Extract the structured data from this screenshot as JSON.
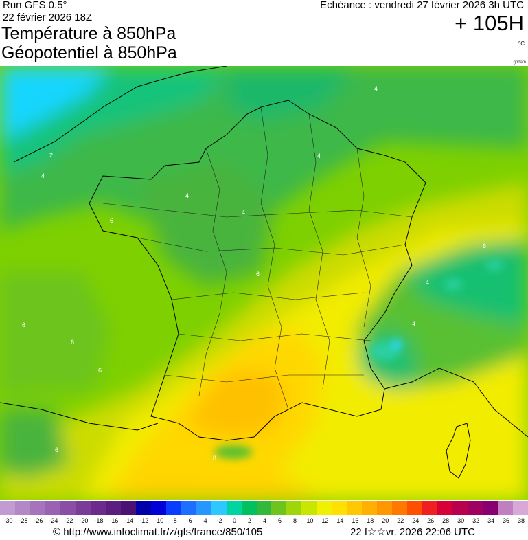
{
  "header": {
    "run_label": "Run GFS 0.5°",
    "run_date": "22 février 2026 18Z",
    "title_line1": "Température à 850hPa",
    "title_line2": "Géopotentiel à 850hPa",
    "valid_time": "Echéance : vendredi 27 février 2026 3h UTC",
    "lead_time": "+ 105H",
    "unit": "°C",
    "credit": "gpdam"
  },
  "map": {
    "region": "France",
    "contour_labels": [
      "2",
      "4",
      "4",
      "4",
      "4",
      "4",
      "6",
      "6",
      "6",
      "6",
      "4",
      "4",
      "6",
      "6",
      "6",
      "8"
    ]
  },
  "color_scale": {
    "tick_labels": [
      "-30",
      "-28",
      "-26",
      "-24",
      "-22",
      "-20",
      "-18",
      "-16",
      "-14",
      "-12",
      "-10",
      "-8",
      "-6",
      "-4",
      "-2",
      "0",
      "2",
      "4",
      "6",
      "8",
      "10",
      "12",
      "14",
      "16",
      "18",
      "20",
      "22",
      "24",
      "26",
      "28",
      "30",
      "32",
      "34",
      "36",
      "38"
    ],
    "colors": [
      "#c39bd3",
      "#b388c8",
      "#a574bd",
      "#9962b3",
      "#8a4ea6",
      "#7a3b99",
      "#6b2a8c",
      "#5c1d80",
      "#4b1173",
      "#0000a8",
      "#0000d8",
      "#0a3cff",
      "#1e6eff",
      "#2896ff",
      "#2cc8ff",
      "#00d4a0",
      "#00c060",
      "#34b83c",
      "#6cc41c",
      "#9ed60a",
      "#c8e600",
      "#f0f000",
      "#ffe000",
      "#ffc800",
      "#ffb000",
      "#ff9800",
      "#ff7800",
      "#ff5000",
      "#f02020",
      "#d80038",
      "#b8004c",
      "#a00060",
      "#880070",
      "#c080c0",
      "#d8a8d8"
    ]
  },
  "footer": {
    "url": "© http://www.infoclimat.fr/z/gfs/france/850/105",
    "generated": "22 f☆☆vr. 2026 22:06 UTC"
  }
}
